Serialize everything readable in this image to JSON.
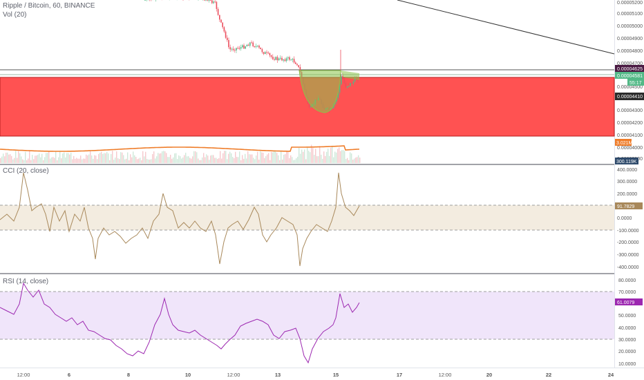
{
  "header": {
    "symbol_line": "Ripple / Bitcoin, 60, BINANCE",
    "volume_line": "Vol (20)"
  },
  "cci": {
    "label": "CCI (20, close)",
    "value_tag": "91.7829"
  },
  "rsi": {
    "label": "RSI (14, close)",
    "value_tag": "61.0079"
  },
  "price_axis": {
    "ticks": [
      "0.00005200",
      "0.00005100",
      "0.00005000",
      "0.00004900",
      "0.00004800",
      "0.00004700",
      "0.00004500",
      "0.00004300",
      "0.00004200",
      "0.00004100",
      "0.00004000",
      "0.00003900"
    ],
    "tag_upper": "0.00004625",
    "tag_current": "0.00004581",
    "tag_timer": "55:17",
    "tag_lower": "0.00004410",
    "tag_vol_ma": "3.021M",
    "tag_volume": "300.119K"
  },
  "cci_axis": {
    "ticks": [
      "400.0000",
      "300.0000",
      "200.0000",
      "100.0000",
      "0.0000",
      "-100.0000",
      "-200.0000",
      "-300.0000",
      "-400.0000"
    ]
  },
  "rsi_axis": {
    "ticks": [
      "80.0000",
      "70.0000",
      "60.0000",
      "50.0000",
      "40.0000",
      "30.0000",
      "20.0000",
      "10.0000"
    ]
  },
  "time_axis": {
    "labels": [
      {
        "text": "12:00",
        "bold": false
      },
      {
        "text": "6",
        "bold": true
      },
      {
        "text": "8",
        "bold": true
      },
      {
        "text": "10",
        "bold": true
      },
      {
        "text": "12:00",
        "bold": false
      },
      {
        "text": "13",
        "bold": true
      },
      {
        "text": "15",
        "bold": true
      },
      {
        "text": "17",
        "bold": true
      },
      {
        "text": "12:00",
        "bold": false
      },
      {
        "text": "20",
        "bold": true
      },
      {
        "text": "22",
        "bold": true
      },
      {
        "text": "24",
        "bold": true
      }
    ]
  },
  "colors": {
    "bull": "#53b987",
    "bear": "#eb4d5c",
    "zone": "#ff5252",
    "cci_line": "#a8885a",
    "rsi_line": "#9c27b0",
    "vol_ma": "#ef7d2a"
  }
}
